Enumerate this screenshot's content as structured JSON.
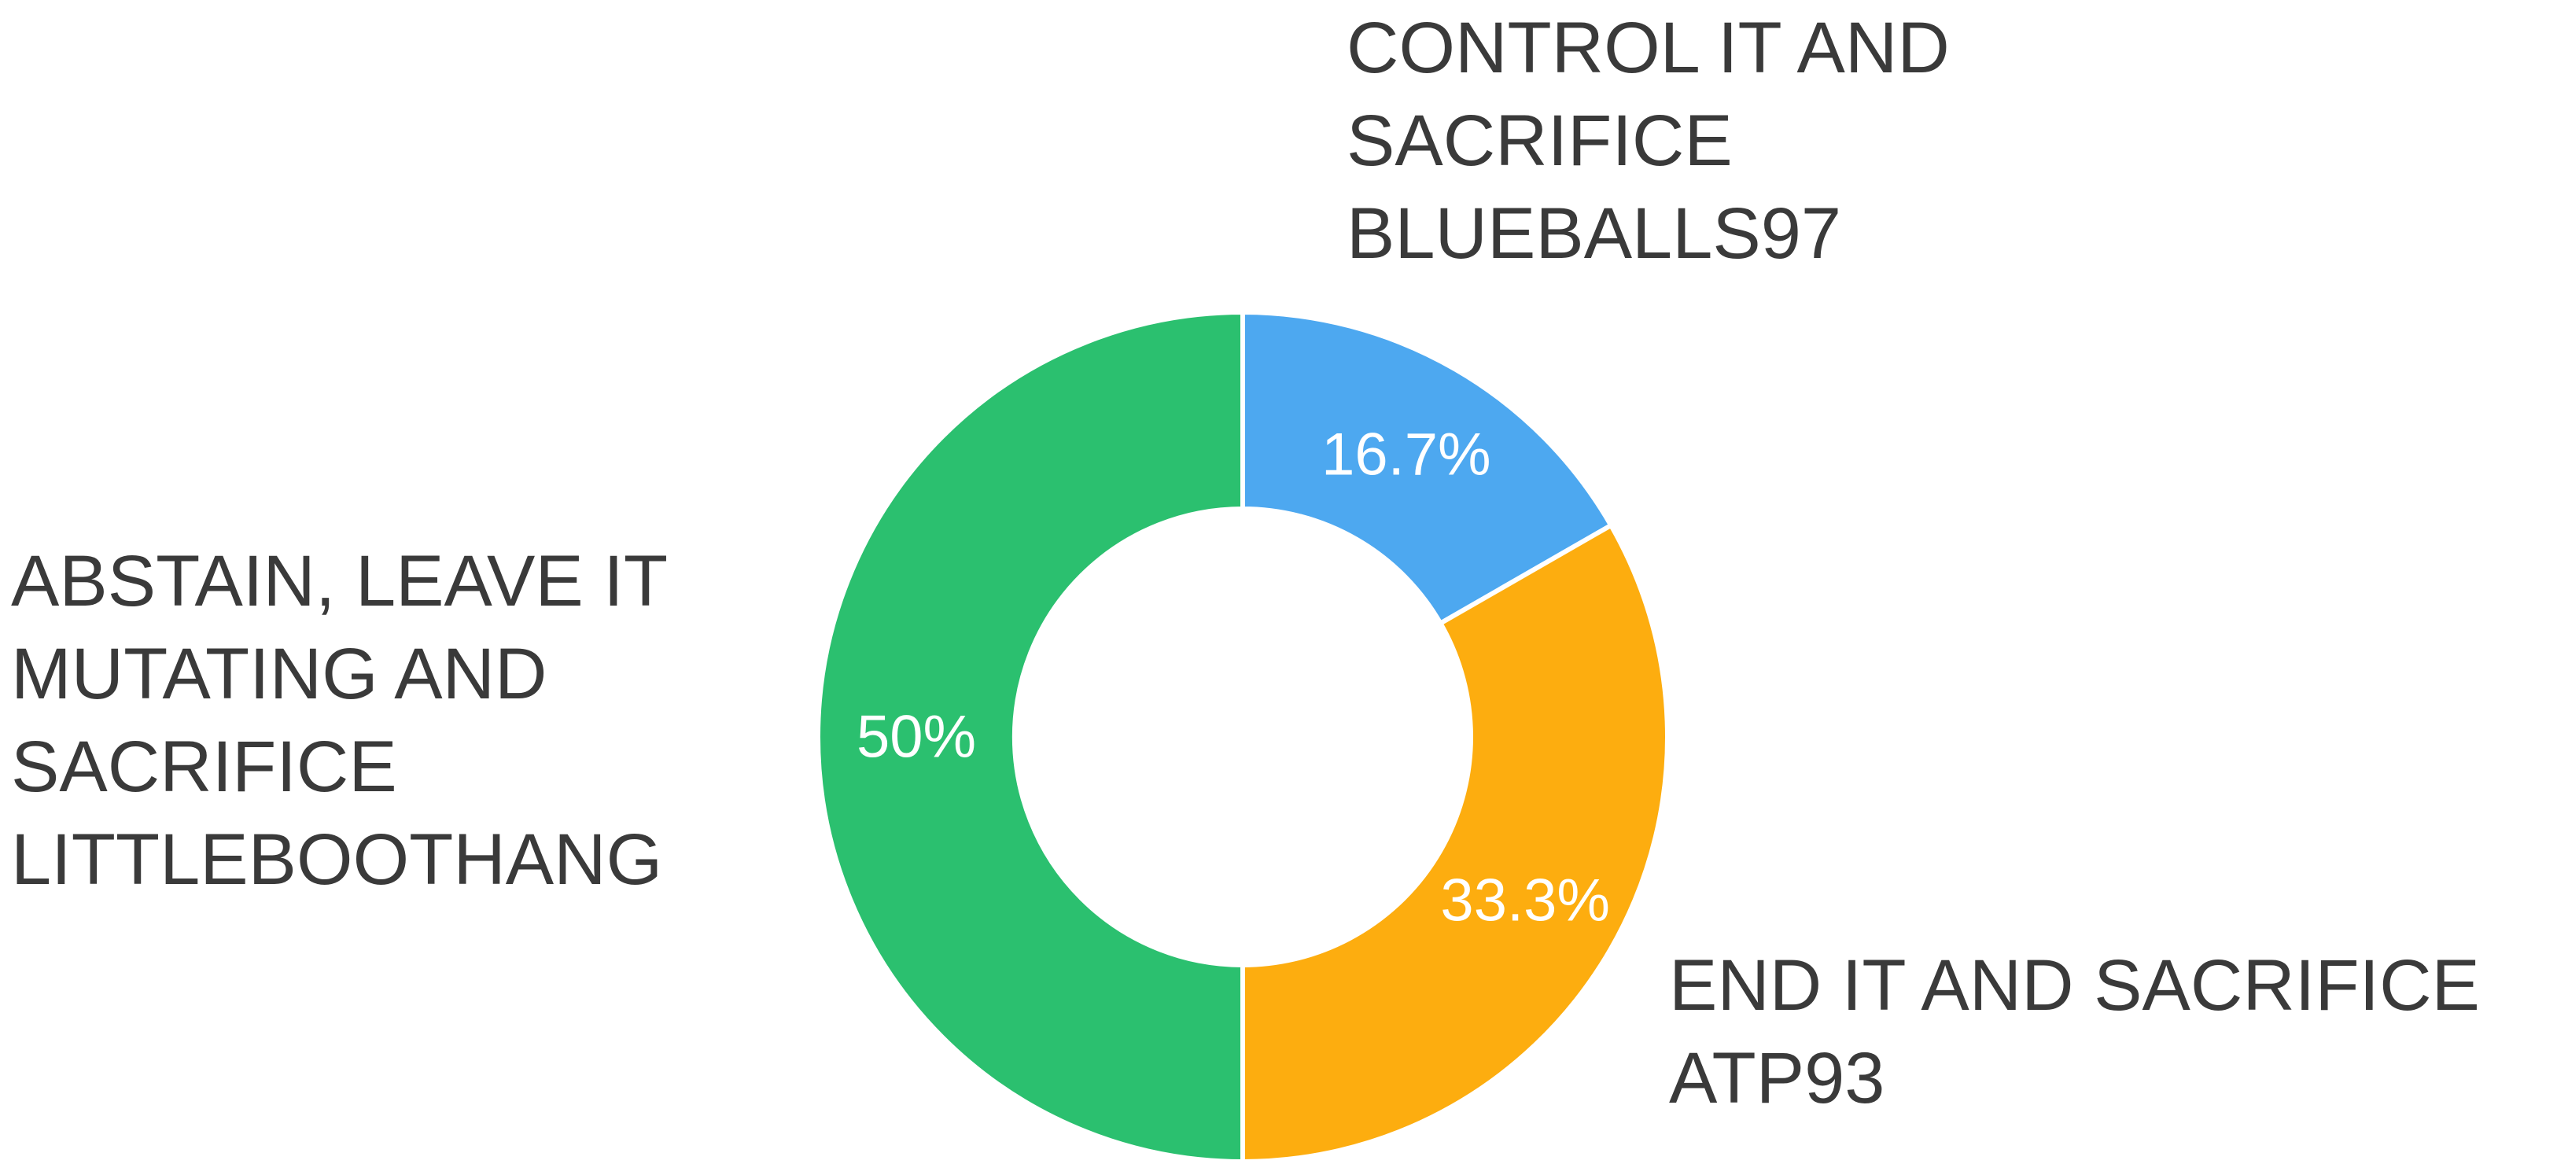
{
  "chart_data": {
    "type": "pie",
    "variant": "donut",
    "legend": "none",
    "slices": [
      {
        "name": "CONTROL IT AND SACRIFICE BLUEBALLS97",
        "label_lines": [
          "CONTROL IT AND",
          "SACRIFICE",
          "BLUEBALLS97"
        ],
        "value": 16.7,
        "display": "16.7%",
        "color": "#4DA8F0"
      },
      {
        "name": "END IT AND SACRIFICE ATP93",
        "label_lines": [
          "END IT AND SACRIFICE",
          "ATP93"
        ],
        "value": 33.3,
        "display": "33.3%",
        "color": "#FDAD0F"
      },
      {
        "name": "ABSTAIN, LEAVE IT MUTATING AND SACRIFICE LITTLEBOOTHANG",
        "label_lines": [
          "ABSTAIN, LEAVE IT",
          "MUTATING AND",
          "SACRIFICE",
          "LITTLEBOOTHANG"
        ],
        "value": 50,
        "display": "50%",
        "color": "#2BC06F"
      }
    ]
  }
}
